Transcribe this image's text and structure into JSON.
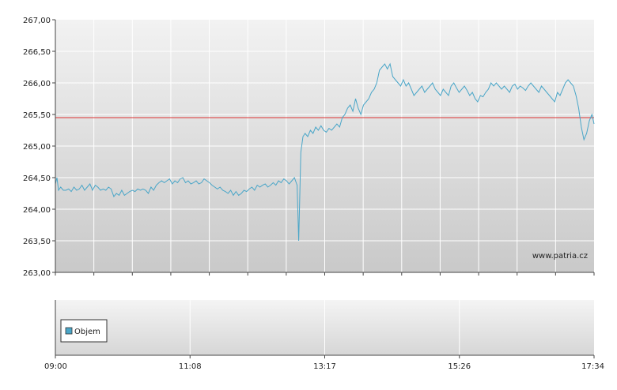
{
  "chart_data": [
    {
      "type": "line",
      "y_ticks": [
        "263,00",
        "263,50",
        "264,00",
        "264,50",
        "265,00",
        "265,50",
        "266,00",
        "266,50",
        "267,00"
      ],
      "ylim": [
        263.0,
        267.0
      ],
      "x_ticks_count": 15,
      "reference_line": {
        "value": 265.45,
        "color": "#dd3333"
      },
      "watermark": "www.patria.cz",
      "grid": true,
      "series_color": "#4aa6c8",
      "series": [
        {
          "x_minutes": [
            0,
            3,
            6,
            10,
            15,
            20,
            25,
            30,
            35,
            40,
            45,
            50,
            55,
            60,
            65,
            70,
            75,
            80,
            85,
            90,
            95,
            100,
            105,
            110,
            115,
            120,
            125,
            130,
            135,
            140,
            145,
            150,
            155,
            160,
            165,
            170,
            175,
            180,
            185,
            190,
            195,
            200,
            205,
            210,
            215,
            220,
            225,
            230,
            235,
            240,
            245,
            250,
            255,
            260,
            265,
            270,
            275,
            280,
            285,
            290,
            295,
            300,
            305,
            310,
            315,
            320,
            325,
            330,
            335,
            340,
            345,
            350,
            355,
            360,
            365,
            370,
            375,
            380,
            385,
            390,
            395,
            400,
            405,
            410,
            415,
            420,
            425,
            430,
            435,
            440,
            445,
            450,
            452,
            455,
            458,
            462,
            466,
            470,
            475,
            480,
            485,
            490,
            495,
            500,
            505,
            510,
            515,
            520,
            525,
            530,
            535,
            540,
            545,
            550,
            555,
            560,
            565,
            570,
            575,
            580,
            585,
            590,
            595,
            600,
            605,
            610,
            615,
            620,
            625,
            630,
            635,
            640,
            645,
            650,
            655,
            660,
            665,
            670,
            675,
            680,
            685,
            690,
            695,
            700,
            705,
            710,
            715,
            720,
            725,
            730,
            735,
            740,
            745,
            750,
            755,
            760,
            765,
            770,
            775,
            780,
            785,
            790,
            795,
            800,
            805,
            810,
            815,
            820,
            825,
            830,
            835,
            840,
            845,
            850,
            855,
            860,
            865,
            870,
            875,
            880,
            885,
            890,
            895,
            900,
            905,
            910,
            915,
            920,
            925,
            930,
            935,
            940,
            945,
            950,
            955,
            960,
            965,
            970,
            975,
            980,
            985,
            990,
            995,
            1000,
            1005,
            1010,
            1014
          ],
          "values": [
            264.4,
            264.5,
            264.3,
            264.35,
            264.3,
            264.3,
            264.32,
            264.28,
            264.35,
            264.3,
            264.32,
            264.38,
            264.3,
            264.35,
            264.4,
            264.3,
            264.38,
            264.35,
            264.3,
            264.32,
            264.3,
            264.35,
            264.32,
            264.2,
            264.25,
            264.22,
            264.3,
            264.22,
            264.25,
            264.28,
            264.3,
            264.28,
            264.32,
            264.3,
            264.32,
            264.3,
            264.25,
            264.35,
            264.3,
            264.38,
            264.42,
            264.45,
            264.42,
            264.45,
            264.48,
            264.4,
            264.45,
            264.42,
            264.48,
            264.5,
            264.42,
            264.45,
            264.4,
            264.42,
            264.45,
            264.4,
            264.42,
            264.48,
            264.45,
            264.42,
            264.38,
            264.35,
            264.32,
            264.35,
            264.3,
            264.28,
            264.25,
            264.3,
            264.22,
            264.28,
            264.22,
            264.25,
            264.3,
            264.28,
            264.32,
            264.35,
            264.3,
            264.38,
            264.35,
            264.38,
            264.4,
            264.35,
            264.38,
            264.42,
            264.38,
            264.45,
            264.42,
            264.48,
            264.45,
            264.4,
            264.45,
            264.5,
            264.45,
            264.38,
            263.5,
            264.9,
            265.15,
            265.2,
            265.15,
            265.25,
            265.2,
            265.3,
            265.25,
            265.32,
            265.25,
            265.22,
            265.28,
            265.25,
            265.3,
            265.35,
            265.3,
            265.45,
            265.5,
            265.6,
            265.65,
            265.55,
            265.75,
            265.6,
            265.5,
            265.65,
            265.7,
            265.75,
            265.85,
            265.9,
            266.0,
            266.2,
            266.25,
            266.3,
            266.22,
            266.3,
            266.1,
            266.05,
            266.0,
            265.95,
            266.05,
            265.95,
            266.0,
            265.9,
            265.8,
            265.85,
            265.9,
            265.95,
            265.85,
            265.9,
            265.95,
            266.0,
            265.9,
            265.85,
            265.8,
            265.9,
            265.85,
            265.8,
            265.95,
            266.0,
            265.92,
            265.85,
            265.9,
            265.95,
            265.88,
            265.8,
            265.85,
            265.75,
            265.7,
            265.8,
            265.78,
            265.85,
            265.9,
            266.0,
            265.95,
            266.0,
            265.95,
            265.9,
            265.95,
            265.9,
            265.85,
            265.95,
            265.98,
            265.9,
            265.95,
            265.92,
            265.88,
            265.95,
            266.0,
            265.95,
            265.9,
            265.85,
            265.95,
            265.9,
            265.85,
            265.8,
            265.75,
            265.7,
            265.85,
            265.8,
            265.9,
            266.0,
            266.05,
            266.0,
            265.95,
            265.8,
            265.6,
            265.3,
            265.1,
            265.2,
            265.4,
            265.5,
            265.35
          ]
        }
      ]
    },
    {
      "type": "bar",
      "x_ticks": [
        "09:00",
        "11:08",
        "13:17",
        "15:26",
        "17:34"
      ],
      "legend": [
        "Objem"
      ],
      "legend_color": "#4aa6c8",
      "grid": true,
      "series": []
    }
  ]
}
